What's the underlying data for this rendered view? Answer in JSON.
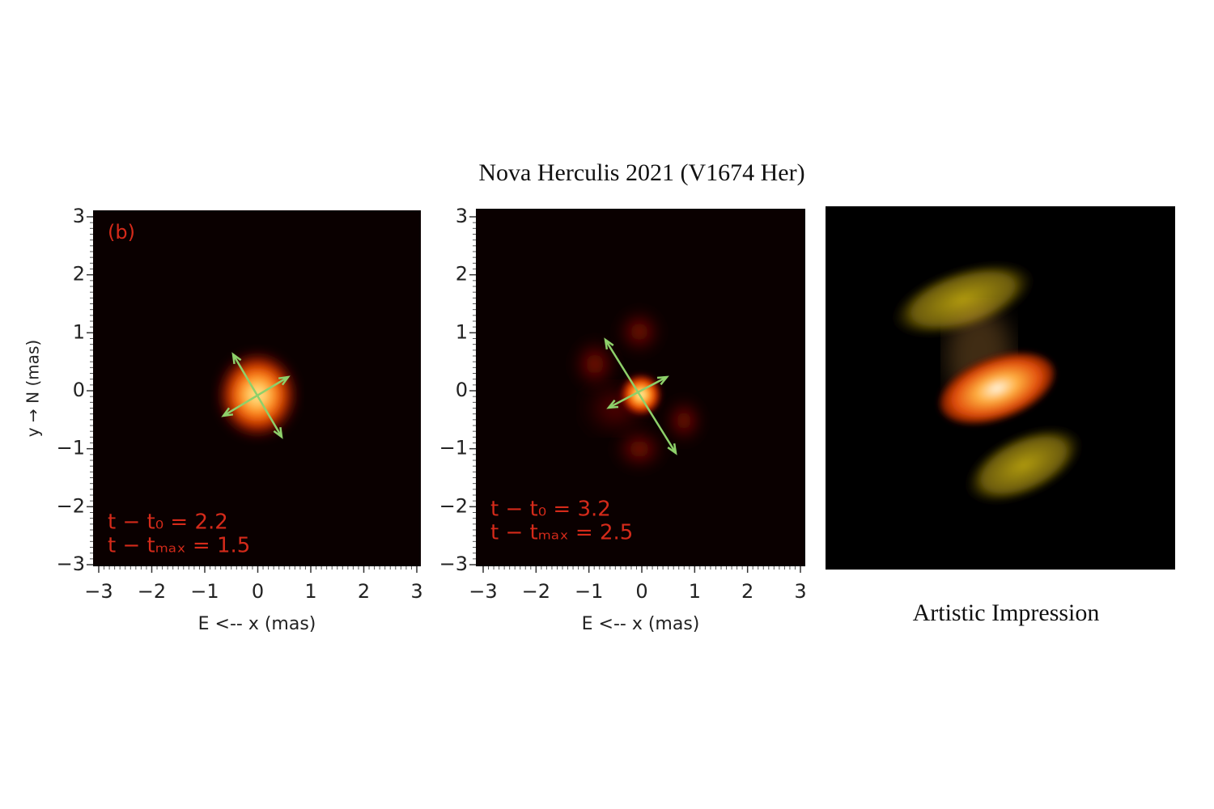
{
  "figure": {
    "title": "Nova Herculis 2021 (V1674 Her)",
    "panels": [
      {
        "label": "(b)",
        "ylabel": "y → N (mas)",
        "xlabel": "E <-- x (mas)",
        "xticks": [
          "−3",
          "−2",
          "−1",
          "0",
          "1",
          "2",
          "3"
        ],
        "yticks": [
          "3",
          "2",
          "1",
          "0",
          "−1",
          "−2",
          "−3"
        ],
        "annotations": [
          "t − t₀ = 2.2",
          "t − tₘₐₓ = 1.5"
        ]
      },
      {
        "xlabel": "E <-- x (mas)",
        "xticks": [
          "−3",
          "−2",
          "−1",
          "0",
          "1",
          "2",
          "3"
        ],
        "yticks": [
          "3",
          "2",
          "1",
          "0",
          "−1",
          "−2",
          "−3"
        ],
        "annotations": [
          "t − t₀ = 3.2",
          "t − tₘₐₓ = 2.5"
        ]
      }
    ],
    "caption": "Artistic Impression"
  }
}
